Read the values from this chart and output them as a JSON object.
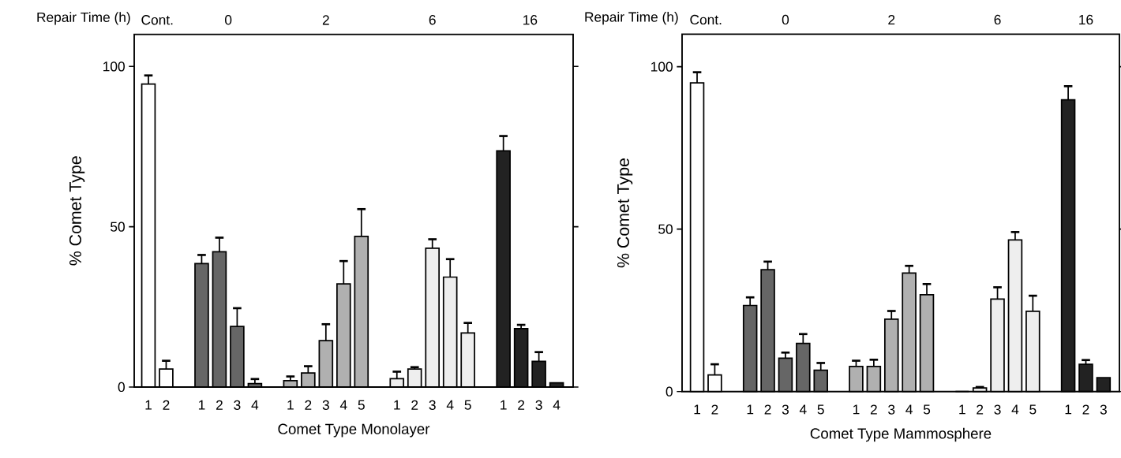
{
  "chart_data": [
    {
      "type": "bar",
      "xlabel": "Comet Type Monolayer",
      "ylabel": "% Comet Type",
      "categories": [
        "1",
        "2",
        null,
        "1",
        "2",
        "3",
        "4",
        null,
        "1",
        "2",
        "3",
        "4",
        "5",
        null,
        "1",
        "2",
        "3",
        "4",
        "5",
        null,
        "1",
        "2",
        "3",
        "4"
      ],
      "values": [
        94.5,
        5.6,
        null,
        38.5,
        42.2,
        18.9,
        1.1,
        null,
        2.0,
        4.4,
        14.5,
        32.2,
        47.0,
        null,
        2.6,
        5.6,
        43.3,
        34.3,
        16.9,
        null,
        73.7,
        18.2,
        8.0,
        1.3
      ],
      "errors": [
        [
          94.5,
          97.2
        ],
        [
          5.6,
          8.2
        ],
        null,
        [
          38.5,
          41.2
        ],
        [
          42.2,
          46.6
        ],
        [
          18.9,
          24.6
        ],
        [
          1.1,
          2.5
        ],
        null,
        [
          2.0,
          3.3
        ],
        [
          4.4,
          6.5
        ],
        [
          14.5,
          19.6
        ],
        [
          32.2,
          39.3
        ],
        [
          47.0,
          55.5
        ],
        null,
        [
          2.6,
          4.8
        ],
        [
          5.6,
          6.2
        ],
        [
          43.3,
          46.1
        ],
        [
          34.3,
          39.9
        ],
        [
          16.9,
          20.0
        ],
        null,
        [
          73.7,
          78.3
        ],
        [
          18.2,
          19.4
        ],
        [
          8.0,
          10.9
        ],
        null
      ],
      "colors": [
        "#ffffff",
        "#ffffff",
        null,
        "#666666",
        "#666666",
        "#666666",
        "#666666",
        null,
        "#b0b0b0",
        "#b0b0b0",
        "#b0b0b0",
        "#b0b0b0",
        "#b0b0b0",
        null,
        "#eeeeee",
        "#eeeeee",
        "#eeeeee",
        "#eeeeee",
        "#eeeeee",
        null,
        "#222222",
        "#222222",
        "#222222",
        "#222222"
      ],
      "ylim": [
        0,
        110
      ],
      "yticks": [
        0,
        50,
        100
      ],
      "annotations": [
        "Repair Time (h)",
        "Cont.",
        "0",
        "2",
        "6",
        "16"
      ]
    },
    {
      "type": "bar",
      "xlabel": "Comet Type Mammosphere",
      "ylabel": "% Comet Type",
      "categories": [
        "1",
        "2",
        null,
        "1",
        "2",
        "3",
        "4",
        "5",
        null,
        "1",
        "2",
        "3",
        "4",
        "5",
        null,
        "1",
        "2",
        "3",
        "4",
        "5",
        null,
        "1",
        "2",
        "3"
      ],
      "values": [
        95.0,
        5.1,
        null,
        26.5,
        37.5,
        10.3,
        14.8,
        6.6,
        null,
        7.7,
        7.7,
        22.3,
        36.5,
        29.8,
        null,
        0,
        1.1,
        28.5,
        46.7,
        24.7,
        null,
        89.8,
        8.4,
        4.3
      ],
      "errors": [
        [
          95.0,
          98.3
        ],
        [
          5.1,
          8.4
        ],
        null,
        [
          26.5,
          29.0
        ],
        [
          37.5,
          40.0
        ],
        [
          10.3,
          12.0
        ],
        [
          14.8,
          17.7
        ],
        [
          6.6,
          8.8
        ],
        null,
        [
          7.7,
          9.5
        ],
        [
          7.7,
          9.8
        ],
        [
          22.3,
          24.8
        ],
        [
          36.5,
          38.7
        ],
        [
          29.8,
          33.1
        ],
        null,
        null,
        [
          1.1,
          1.4
        ],
        [
          28.5,
          32.1
        ],
        [
          46.7,
          49.1
        ],
        [
          24.7,
          29.5
        ],
        null,
        [
          89.8,
          94.0
        ],
        [
          8.4,
          9.7
        ],
        null
      ],
      "colors": [
        "#ffffff",
        "#ffffff",
        null,
        "#666666",
        "#666666",
        "#666666",
        "#666666",
        "#666666",
        null,
        "#b0b0b0",
        "#b0b0b0",
        "#b0b0b0",
        "#b0b0b0",
        "#b0b0b0",
        null,
        "#eeeeee",
        "#eeeeee",
        "#eeeeee",
        "#eeeeee",
        "#eeeeee",
        null,
        "#222222",
        "#222222",
        "#222222"
      ],
      "ylim": [
        0,
        110
      ],
      "yticks": [
        0,
        50,
        100
      ],
      "annotations": [
        "Repair Time (h)",
        "Cont.",
        "0",
        "2",
        "6",
        "16"
      ]
    }
  ]
}
